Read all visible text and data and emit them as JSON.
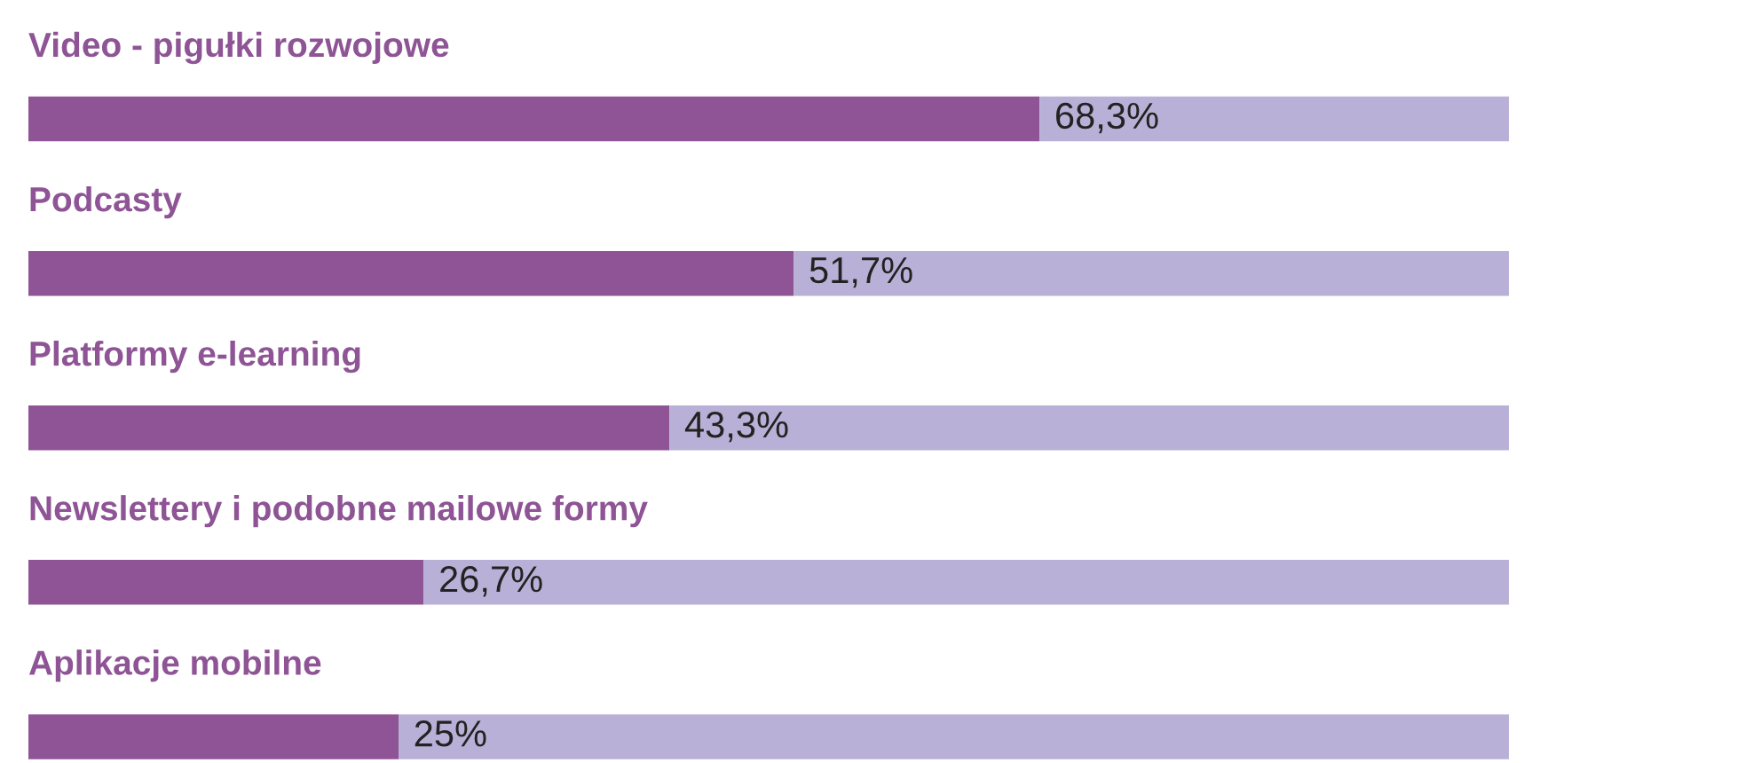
{
  "chart_data": {
    "type": "bar",
    "orientation": "horizontal",
    "stacked": true,
    "categories": [
      "Video - pigułki rozwojowe",
      "Podcasty",
      "Platformy e-learning",
      "Newslettery i podobne mailowe formy",
      "Aplikacje mobilne"
    ],
    "series": [
      {
        "color": "#8e5495",
        "values": [
          68.3,
          51.7,
          43.3,
          26.7,
          25
        ],
        "value_labels": [
          "68,3%",
          "51,7%",
          "43,3%",
          "26,7%",
          "25%"
        ]
      },
      {
        "color": "#b8b0d6",
        "values": [
          31.7,
          48.3,
          56.7,
          73.3,
          75
        ]
      }
    ],
    "xlim": [
      0,
      100
    ],
    "legend": false
  }
}
